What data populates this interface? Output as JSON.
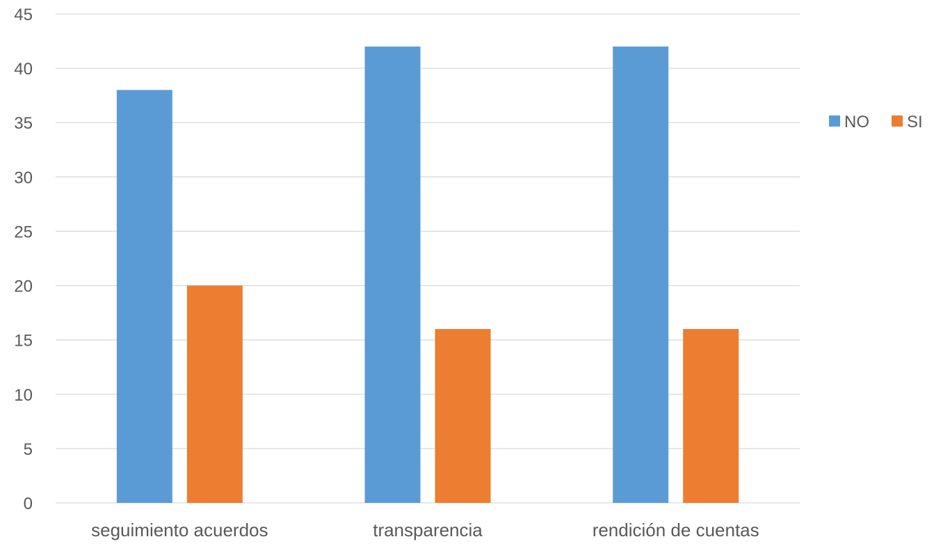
{
  "chart_data": {
    "type": "bar",
    "categories": [
      "seguimiento acuerdos",
      "transparencia",
      "rendición de cuentas"
    ],
    "series": [
      {
        "name": "NO",
        "color": "#5B9BD5",
        "values": [
          38,
          42,
          42
        ]
      },
      {
        "name": "SI",
        "color": "#ED7D31",
        "values": [
          20,
          16,
          16
        ]
      }
    ],
    "ylim": [
      0,
      45
    ],
    "yticks": [
      0,
      5,
      10,
      15,
      20,
      25,
      30,
      35,
      40,
      45
    ],
    "grid": true,
    "gridColor": "#D9D9D9",
    "legend_position": "right"
  }
}
